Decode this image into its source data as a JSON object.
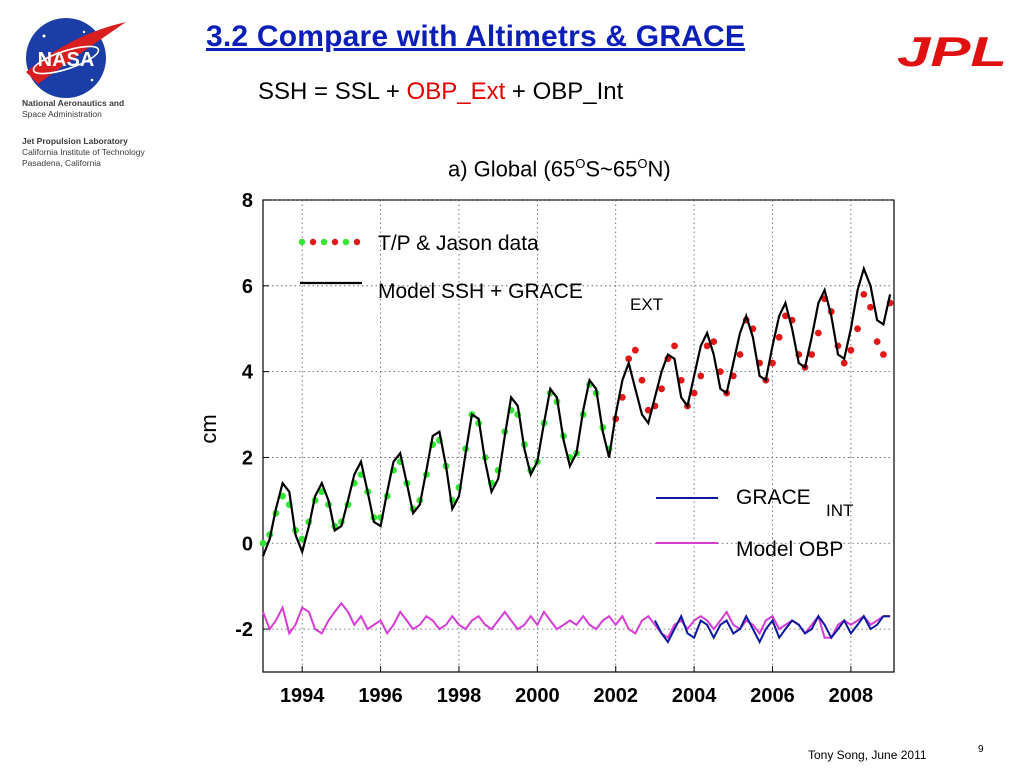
{
  "header": {
    "title": "3.2 Compare with Altimetrs & GRACE",
    "nasa_logo_text": "NASA",
    "jpl_logo_text": "JPL",
    "agency_lines": [
      "National Aeronautics and",
      "Space Administration",
      "Jet Propulsion Laboratory",
      "California Institute of Technology",
      "Pasadena, California"
    ]
  },
  "equation": {
    "part1": "SSH = SSL + ",
    "part2": "OBP_Ext",
    "part3": " + OBP_Int"
  },
  "colors": {
    "title": "#0b1fb8",
    "tp_green": "#33e633",
    "jason_red": "#e01818",
    "model_ssh": "#000000",
    "grace_int": "#0b1a9c",
    "model_obp": "#d63cd6",
    "jpl_red": "#e01010"
  },
  "chart_data": {
    "type": "line",
    "title_main": "a) Global (65",
    "title_o1": "O",
    "title_mid": "S~65",
    "title_o2": "O",
    "title_end": "N)",
    "xlabel": "",
    "ylabel": "cm",
    "xlim": [
      1993.0,
      2009.1
    ],
    "ylim": [
      -3,
      8
    ],
    "yticks": [
      -2,
      0,
      2,
      4,
      6,
      8
    ],
    "xticks": [
      1994,
      1996,
      1998,
      2000,
      2002,
      2004,
      2006,
      2008
    ],
    "grid": true,
    "legend": [
      {
        "label": "T/P & Jason data",
        "style": "dots"
      },
      {
        "label": "Model SSH + GRACE",
        "sub": "EXT",
        "style": "line"
      },
      {
        "label": "GRACE",
        "sub": "INT",
        "style": "line"
      },
      {
        "label": "Model OBP",
        "style": "line"
      }
    ],
    "series": [
      {
        "name": "T/P & Jason data",
        "style": "dots",
        "x": [
          1993.0,
          1993.17,
          1993.33,
          1993.5,
          1993.67,
          1993.83,
          1994.0,
          1994.17,
          1994.33,
          1994.5,
          1994.67,
          1994.83,
          1995.0,
          1995.17,
          1995.33,
          1995.5,
          1995.67,
          1995.83,
          1996.0,
          1996.17,
          1996.33,
          1996.5,
          1996.67,
          1996.83,
          1997.0,
          1997.17,
          1997.33,
          1997.5,
          1997.67,
          1997.83,
          1998.0,
          1998.17,
          1998.33,
          1998.5,
          1998.67,
          1998.83,
          1999.0,
          1999.17,
          1999.33,
          1999.5,
          1999.67,
          1999.83,
          2000.0,
          2000.17,
          2000.33,
          2000.5,
          2000.67,
          2000.83,
          2001.0,
          2001.17,
          2001.33,
          2001.5,
          2001.67,
          2001.83,
          2002.0,
          2002.17,
          2002.33,
          2002.5,
          2002.67,
          2002.83,
          2003.0,
          2003.17,
          2003.33,
          2003.5,
          2003.67,
          2003.83,
          2004.0,
          2004.17,
          2004.33,
          2004.5,
          2004.67,
          2004.83,
          2005.0,
          2005.17,
          2005.33,
          2005.5,
          2005.67,
          2005.83,
          2006.0,
          2006.17,
          2006.33,
          2006.5,
          2006.67,
          2006.83,
          2007.0,
          2007.17,
          2007.33,
          2007.5,
          2007.67,
          2007.83,
          2008.0,
          2008.17,
          2008.33,
          2008.5,
          2008.67,
          2008.83,
          2009.0
        ],
        "y": [
          0.0,
          0.2,
          0.7,
          1.1,
          0.9,
          0.3,
          0.1,
          0.5,
          1.0,
          1.2,
          0.9,
          0.4,
          0.5,
          0.9,
          1.4,
          1.6,
          1.2,
          0.6,
          0.6,
          1.1,
          1.7,
          1.9,
          1.4,
          0.8,
          1.0,
          1.6,
          2.3,
          2.4,
          1.8,
          1.0,
          1.3,
          2.2,
          3.0,
          2.8,
          2.0,
          1.4,
          1.7,
          2.6,
          3.1,
          3.0,
          2.3,
          1.7,
          1.9,
          2.8,
          3.5,
          3.3,
          2.5,
          2.0,
          2.1,
          3.0,
          3.7,
          3.5,
          2.7,
          2.2,
          2.9,
          3.4,
          4.3,
          4.5,
          3.8,
          3.1,
          3.2,
          3.6,
          4.3,
          4.6,
          3.8,
          3.2,
          3.5,
          3.9,
          4.6,
          4.7,
          4.0,
          3.5,
          3.9,
          4.4,
          5.2,
          5.0,
          4.2,
          3.8,
          4.2,
          4.8,
          5.3,
          5.2,
          4.4,
          4.1,
          4.4,
          4.9,
          5.7,
          5.4,
          4.6,
          4.2,
          4.5,
          5.0,
          5.8,
          5.5,
          4.7,
          4.4,
          5.6
        ]
      },
      {
        "name": "Model SSH + GRACE EXT",
        "style": "line",
        "x": [
          1993.0,
          1993.17,
          1993.33,
          1993.5,
          1993.67,
          1993.83,
          1994.0,
          1994.17,
          1994.33,
          1994.5,
          1994.67,
          1994.83,
          1995.0,
          1995.17,
          1995.33,
          1995.5,
          1995.67,
          1995.83,
          1996.0,
          1996.17,
          1996.33,
          1996.5,
          1996.67,
          1996.83,
          1997.0,
          1997.17,
          1997.33,
          1997.5,
          1997.67,
          1997.83,
          1998.0,
          1998.17,
          1998.33,
          1998.5,
          1998.67,
          1998.83,
          1999.0,
          1999.17,
          1999.33,
          1999.5,
          1999.67,
          1999.83,
          2000.0,
          2000.17,
          2000.33,
          2000.5,
          2000.67,
          2000.83,
          2001.0,
          2001.17,
          2001.33,
          2001.5,
          2001.67,
          2001.83,
          2002.0,
          2002.17,
          2002.33,
          2002.5,
          2002.67,
          2002.83,
          2003.0,
          2003.17,
          2003.33,
          2003.5,
          2003.67,
          2003.83,
          2004.0,
          2004.17,
          2004.33,
          2004.5,
          2004.67,
          2004.83,
          2005.0,
          2005.17,
          2005.33,
          2005.5,
          2005.67,
          2005.83,
          2006.0,
          2006.17,
          2006.33,
          2006.5,
          2006.67,
          2006.83,
          2007.0,
          2007.17,
          2007.33,
          2007.5,
          2007.67,
          2007.83,
          2008.0,
          2008.17,
          2008.33,
          2008.5,
          2008.67,
          2008.83,
          2009.0
        ],
        "y": [
          -0.3,
          0.1,
          0.8,
          1.4,
          1.2,
          0.2,
          -0.2,
          0.4,
          1.1,
          1.4,
          1.0,
          0.3,
          0.4,
          1.0,
          1.6,
          1.9,
          1.2,
          0.5,
          0.4,
          1.2,
          1.9,
          2.1,
          1.4,
          0.7,
          0.9,
          1.7,
          2.5,
          2.6,
          1.8,
          0.8,
          1.1,
          2.1,
          3.0,
          2.9,
          1.9,
          1.2,
          1.5,
          2.5,
          3.4,
          3.2,
          2.2,
          1.6,
          1.9,
          2.8,
          3.6,
          3.4,
          2.4,
          1.8,
          2.1,
          3.1,
          3.8,
          3.6,
          2.6,
          2.0,
          3.0,
          3.8,
          4.2,
          3.6,
          3.0,
          2.8,
          3.4,
          4.0,
          4.4,
          4.3,
          3.4,
          3.2,
          3.9,
          4.6,
          4.9,
          4.4,
          3.6,
          3.5,
          4.2,
          4.9,
          5.3,
          4.8,
          3.9,
          3.8,
          4.6,
          5.3,
          5.6,
          5.0,
          4.2,
          4.1,
          4.8,
          5.6,
          5.9,
          5.3,
          4.4,
          4.3,
          5.0,
          5.9,
          6.4,
          6.0,
          5.2,
          5.1,
          5.8
        ]
      },
      {
        "name": "GRACE INT",
        "style": "line",
        "x": [
          2003.0,
          2003.17,
          2003.33,
          2003.5,
          2003.67,
          2003.83,
          2004.0,
          2004.17,
          2004.33,
          2004.5,
          2004.67,
          2004.83,
          2005.0,
          2005.17,
          2005.33,
          2005.5,
          2005.67,
          2005.83,
          2006.0,
          2006.17,
          2006.33,
          2006.5,
          2006.67,
          2006.83,
          2007.0,
          2007.17,
          2007.33,
          2007.5,
          2007.67,
          2007.83,
          2008.0,
          2008.17,
          2008.33,
          2008.5,
          2008.67,
          2008.83,
          2009.0
        ],
        "y": [
          -1.8,
          -2.1,
          -2.3,
          -2.0,
          -1.7,
          -2.1,
          -2.2,
          -1.8,
          -1.9,
          -2.2,
          -1.9,
          -1.8,
          -2.1,
          -2.0,
          -1.7,
          -2.0,
          -2.3,
          -2.0,
          -1.8,
          -2.2,
          -2.0,
          -1.8,
          -1.9,
          -2.1,
          -2.0,
          -1.7,
          -1.9,
          -2.2,
          -2.0,
          -1.8,
          -2.1,
          -1.9,
          -1.7,
          -2.0,
          -1.9,
          -1.7,
          -1.7
        ]
      },
      {
        "name": "Model OBP",
        "style": "line",
        "x": [
          1993.0,
          1993.17,
          1993.33,
          1993.5,
          1993.67,
          1993.83,
          1994.0,
          1994.17,
          1994.33,
          1994.5,
          1994.67,
          1994.83,
          1995.0,
          1995.17,
          1995.33,
          1995.5,
          1995.67,
          1995.83,
          1996.0,
          1996.17,
          1996.33,
          1996.5,
          1996.67,
          1996.83,
          1997.0,
          1997.17,
          1997.33,
          1997.5,
          1997.67,
          1997.83,
          1998.0,
          1998.17,
          1998.33,
          1998.5,
          1998.67,
          1998.83,
          1999.0,
          1999.17,
          1999.33,
          1999.5,
          1999.67,
          1999.83,
          2000.0,
          2000.17,
          2000.33,
          2000.5,
          2000.67,
          2000.83,
          2001.0,
          2001.17,
          2001.33,
          2001.5,
          2001.67,
          2001.83,
          2002.0,
          2002.17,
          2002.33,
          2002.5,
          2002.67,
          2002.83,
          2003.0,
          2003.17,
          2003.33,
          2003.5,
          2003.67,
          2003.83,
          2004.0,
          2004.17,
          2004.33,
          2004.5,
          2004.67,
          2004.83,
          2005.0,
          2005.17,
          2005.33,
          2005.5,
          2005.67,
          2005.83,
          2006.0,
          2006.17,
          2006.33,
          2006.5,
          2006.67,
          2006.83,
          2007.0,
          2007.17,
          2007.33,
          2007.5,
          2007.67,
          2007.83,
          2008.0,
          2008.17,
          2008.33,
          2008.5,
          2008.67,
          2008.83,
          2009.0
        ],
        "y": [
          -1.6,
          -2.0,
          -1.8,
          -1.5,
          -2.1,
          -1.9,
          -1.5,
          -1.6,
          -2.0,
          -2.1,
          -1.8,
          -1.6,
          -1.4,
          -1.6,
          -1.9,
          -1.7,
          -2.0,
          -1.9,
          -1.8,
          -2.1,
          -1.9,
          -1.6,
          -1.8,
          -2.0,
          -1.9,
          -1.7,
          -1.8,
          -2.0,
          -1.9,
          -1.7,
          -1.9,
          -2.0,
          -1.8,
          -1.7,
          -1.9,
          -2.0,
          -1.8,
          -1.6,
          -1.8,
          -2.0,
          -1.9,
          -1.7,
          -1.9,
          -1.6,
          -1.8,
          -2.0,
          -1.9,
          -1.8,
          -1.9,
          -1.7,
          -1.9,
          -2.0,
          -1.8,
          -1.7,
          -1.9,
          -1.7,
          -2.0,
          -2.1,
          -1.8,
          -1.7,
          -1.9,
          -2.1,
          -2.2,
          -1.9,
          -1.8,
          -2.0,
          -1.8,
          -1.7,
          -1.8,
          -2.0,
          -1.8,
          -1.6,
          -1.9,
          -2.0,
          -1.8,
          -1.9,
          -2.1,
          -1.8,
          -1.7,
          -2.0,
          -1.9,
          -1.8,
          -1.9,
          -2.1,
          -1.9,
          -1.7,
          -2.2,
          -2.2,
          -1.9,
          -1.8,
          -1.9,
          -1.8,
          -1.7,
          -1.9,
          -1.8,
          -1.7,
          -1.7
        ]
      }
    ]
  },
  "footer": {
    "author_date": "Tony Song, June 2011",
    "page_number": "9"
  }
}
